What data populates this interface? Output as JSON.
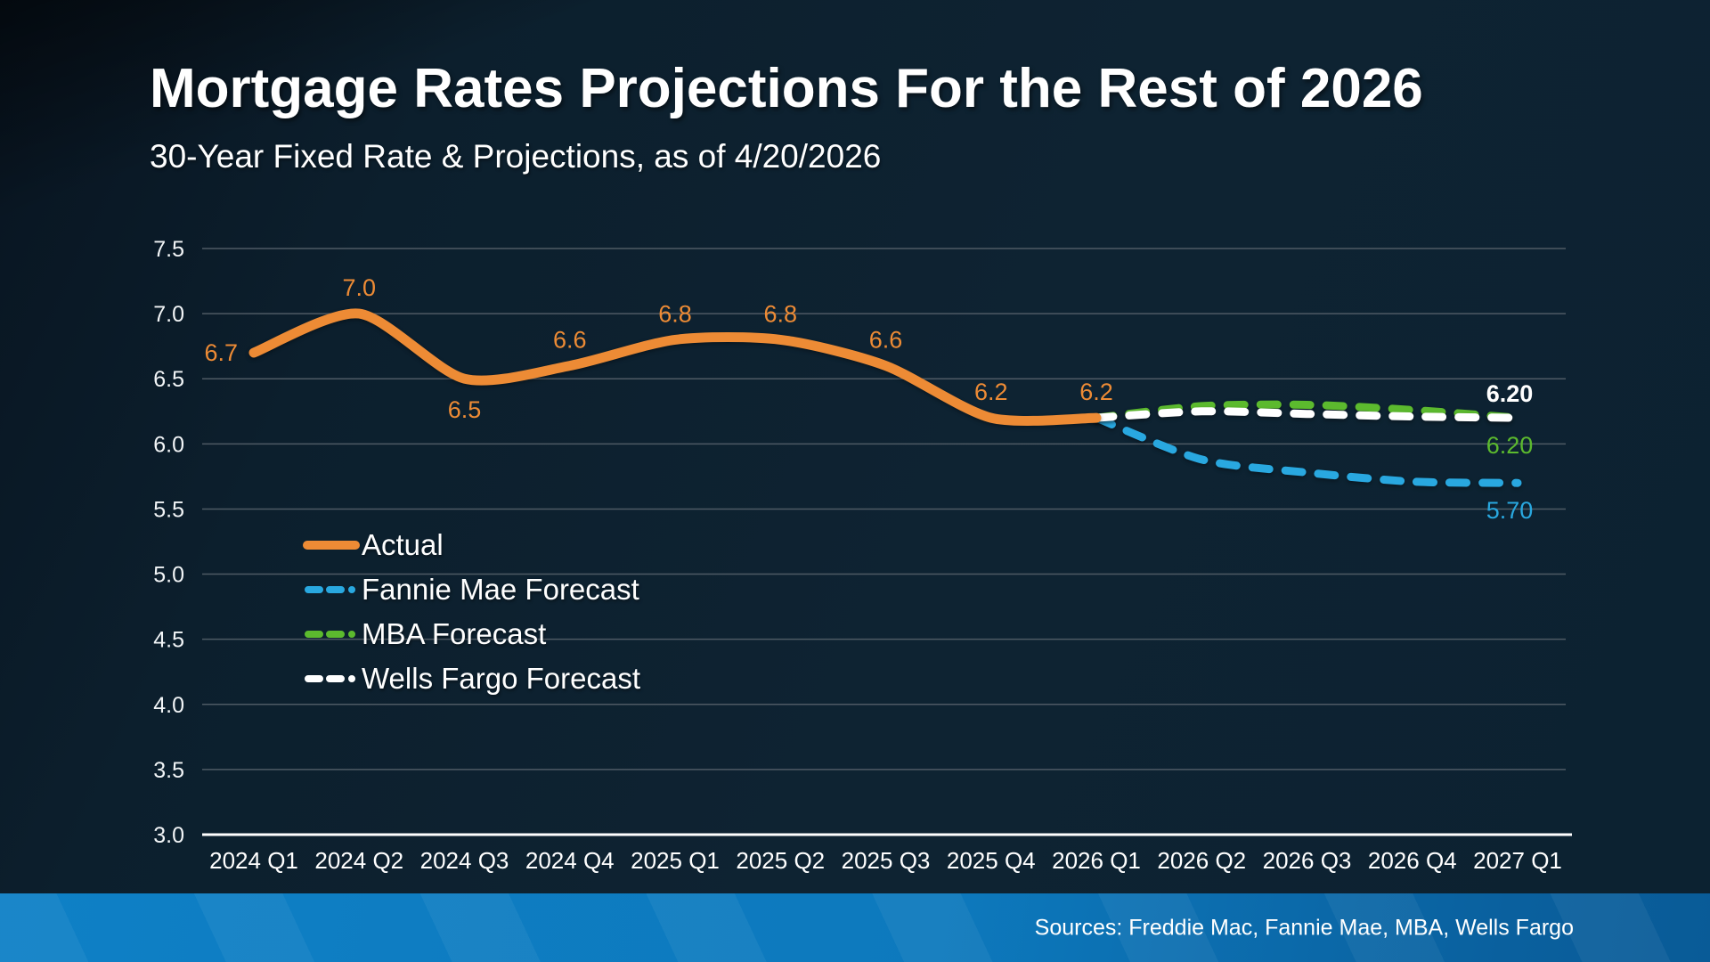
{
  "title": "Mortgage Rates Projections For the Rest of 2026",
  "subtitle": "30-Year Fixed Rate & Projections, as of 4/20/2026",
  "footer": {
    "sources": "Sources: Freddie Mac, Fannie Mae, MBA, Wells Fargo"
  },
  "colors": {
    "background": "#0D2130",
    "gridline": "#4E5A64",
    "axis_line": "#FFFFFF",
    "footer_bar": "#0E80C6",
    "actual": "#ED8B35",
    "fannie_mae": "#29A8E0",
    "mba": "#5CBA2E",
    "wells_fargo": "#FFFFFF"
  },
  "chart_data": {
    "type": "line",
    "categories": [
      "2024 Q1",
      "2024 Q2",
      "2024 Q3",
      "2024 Q4",
      "2025 Q1",
      "2025 Q2",
      "2025 Q3",
      "2025 Q4",
      "2026 Q1",
      "2026 Q2",
      "2026 Q3",
      "2026 Q4",
      "2027 Q1"
    ],
    "ylim": [
      3.0,
      7.5
    ],
    "ytick_step": 0.5,
    "y_ticks": [
      "7.5",
      "7.0",
      "6.5",
      "6.0",
      "5.5",
      "5.0",
      "4.5",
      "4.0",
      "3.5",
      "3.0"
    ],
    "grid": true,
    "legend_position": "middle-left",
    "series": [
      {
        "name": "Actual",
        "color": "#ED8B35",
        "style": "solid",
        "values": [
          6.7,
          7.0,
          6.5,
          6.6,
          6.8,
          6.8,
          6.6,
          6.2,
          6.2,
          null,
          null,
          null,
          null
        ],
        "point_labels": [
          "6.7",
          "7.0",
          "6.5",
          "6.6",
          "6.8",
          "6.8",
          "6.6",
          "6.2",
          "6.2"
        ],
        "point_label_placement": [
          "left",
          "above",
          "below",
          "above",
          "above",
          "above",
          "above",
          "above",
          "above"
        ]
      },
      {
        "name": "Fannie Mae Forecast",
        "color": "#29A8E0",
        "style": "dashed",
        "values": [
          null,
          null,
          null,
          null,
          null,
          null,
          null,
          null,
          6.2,
          5.88,
          5.78,
          5.71,
          5.7
        ],
        "end_label": "5.70",
        "end_label_position": "below"
      },
      {
        "name": "MBA Forecast",
        "color": "#5CBA2E",
        "style": "dashed",
        "values": [
          null,
          null,
          null,
          null,
          null,
          null,
          null,
          null,
          6.2,
          6.29,
          6.3,
          6.26,
          6.2
        ],
        "end_label": "6.20",
        "end_label_position": "below"
      },
      {
        "name": "Wells Fargo Forecast",
        "color": "#FFFFFF",
        "style": "dashed",
        "values": [
          null,
          null,
          null,
          null,
          null,
          null,
          null,
          null,
          6.2,
          6.25,
          6.23,
          6.21,
          6.2
        ],
        "end_label": "6.20",
        "end_label_position": "above"
      }
    ]
  }
}
